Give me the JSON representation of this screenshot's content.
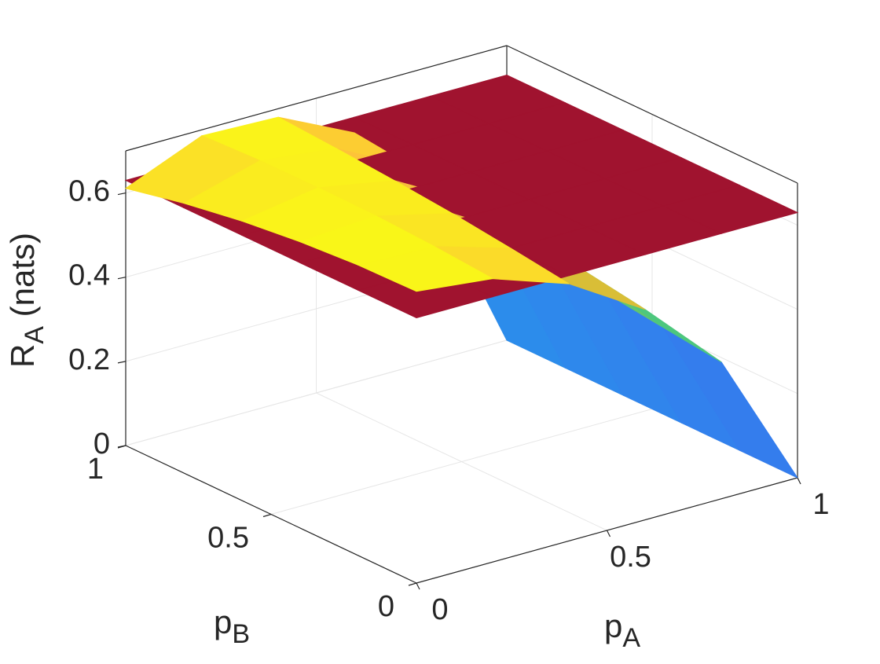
{
  "chart_data": {
    "type": "surface3d",
    "xlabel": [
      "p",
      "A"
    ],
    "ylabel": [
      "p",
      "B"
    ],
    "zlabel": [
      "R",
      "A",
      " (nats)"
    ],
    "x": [
      0,
      0.2,
      0.4,
      0.6,
      0.8,
      1
    ],
    "y": [
      0,
      0.2,
      0.4,
      0.6,
      0.8,
      1
    ],
    "xlim": [
      0,
      1
    ],
    "ylim": [
      0,
      1
    ],
    "zlim": [
      0,
      0.7
    ],
    "xticks": [
      0,
      0.5,
      1
    ],
    "yticks": [
      0,
      0.5,
      1
    ],
    "zticks": [
      0,
      0.2,
      0.4,
      0.6
    ],
    "grid": true,
    "surfaces": [
      {
        "colormap": "parula",
        "z": [
          [
            0.693,
            0.673,
            0.611,
            0.5,
            0.325,
            0
          ],
          [
            0.69,
            0.684,
            0.63,
            0.522,
            0.342,
            0
          ],
          [
            0.68,
            0.691,
            0.647,
            0.542,
            0.359,
            0
          ],
          [
            0.664,
            0.693,
            0.66,
            0.56,
            0.375,
            0
          ],
          [
            0.641,
            0.692,
            0.671,
            0.577,
            0.39,
            0
          ],
          [
            0.611,
            0.686,
            0.68,
            0.593,
            0.405,
            0
          ]
        ]
      },
      {
        "color": "#a0132f",
        "z": 0.63
      }
    ]
  }
}
